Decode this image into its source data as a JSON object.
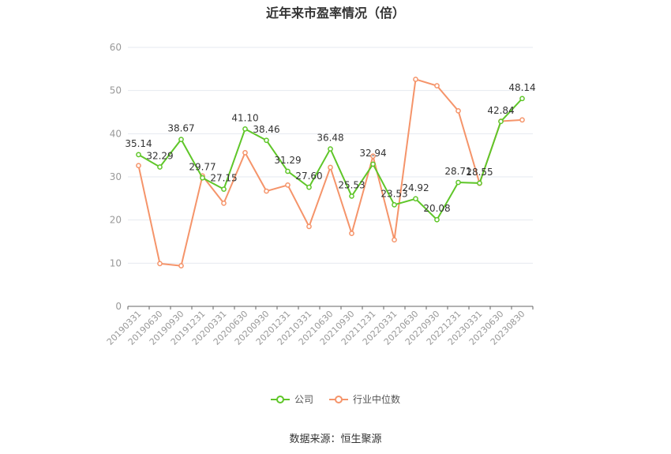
{
  "title": "近年来市盈率情况（倍）",
  "source": "数据来源：恒生聚源",
  "colors": {
    "company": "#5fc629",
    "industry": "#f5946a",
    "grid": "#e6e9f0",
    "axis": "#666666",
    "label": "#333333",
    "tick": "#999999"
  },
  "chart_data": {
    "type": "line",
    "title": "近年来市盈率情况（倍）",
    "categories": [
      "20190331",
      "20190630",
      "20190930",
      "20191231",
      "20200331",
      "20200630",
      "20200930",
      "20201231",
      "20210331",
      "20210630",
      "20210930",
      "20211231",
      "20220331",
      "20220630",
      "20220930",
      "20221231",
      "20230331",
      "20230630",
      "20230830"
    ],
    "ylim": [
      0,
      60
    ],
    "yticks": [
      0,
      10,
      20,
      30,
      40,
      50,
      60
    ],
    "grid": true,
    "legend_position": "bottom",
    "series": [
      {
        "name": "公司",
        "color": "#5fc629",
        "labeled": true,
        "values": [
          35.14,
          32.29,
          38.67,
          29.77,
          27.15,
          41.1,
          38.46,
          31.29,
          27.6,
          36.48,
          25.53,
          32.94,
          23.53,
          24.92,
          20.08,
          28.71,
          28.55,
          42.84,
          48.14
        ],
        "labels": [
          "35.14",
          "32.29",
          "38.67",
          "29.77",
          "27.15",
          "41.10",
          "38.46",
          "31.29",
          "27.60",
          "36.48",
          "25.53",
          "32.94",
          "23.53",
          "24.92",
          "20.08",
          "28.71",
          "28.55",
          "42.84",
          "48.14"
        ]
      },
      {
        "name": "行业中位数",
        "color": "#f5946a",
        "labeled": false,
        "values": [
          32.6,
          9.9,
          9.4,
          30.2,
          23.9,
          35.6,
          26.7,
          28.1,
          18.5,
          32.2,
          16.9,
          34.8,
          15.4,
          52.6,
          51.1,
          45.3,
          28.5,
          42.9,
          43.2
        ]
      }
    ]
  }
}
